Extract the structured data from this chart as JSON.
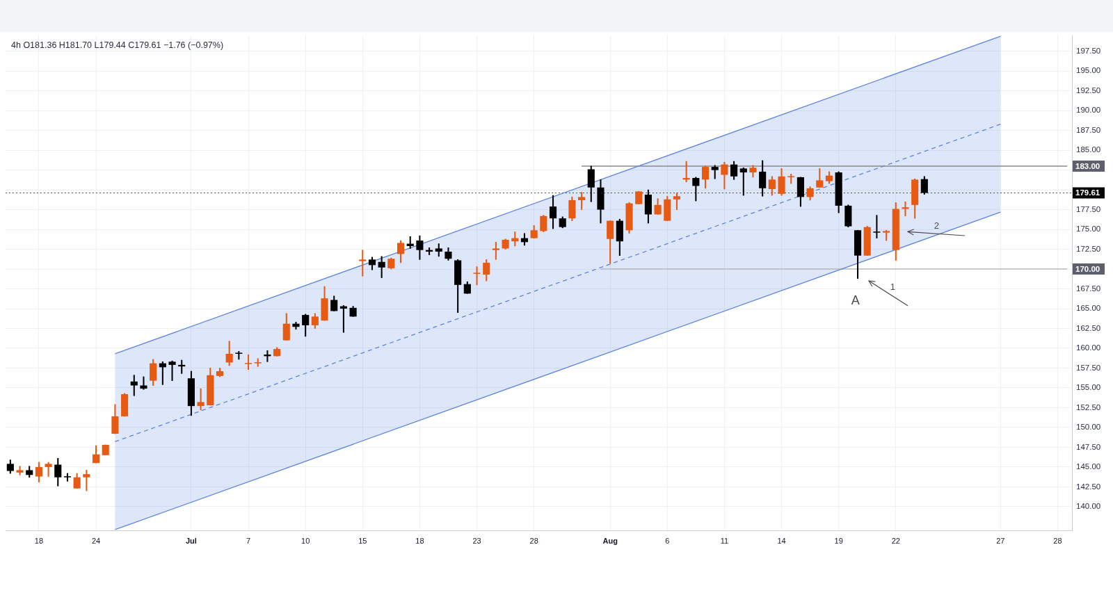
{
  "chart_data": {
    "type": "candlestick",
    "title": "4h O181.36 H181.70 L179.44 C179.61 −1.76 (−0.97%)",
    "categories": [
      null,
      null,
      null,
      "18",
      null,
      null,
      null,
      null,
      null,
      "24",
      null,
      null,
      null,
      null,
      null,
      null,
      null,
      null,
      null,
      "Jul",
      null,
      null,
      null,
      null,
      null,
      "7",
      null,
      null,
      null,
      null,
      null,
      "10",
      null,
      null,
      null,
      null,
      null,
      "15",
      null,
      null,
      null,
      null,
      null,
      "18",
      null,
      null,
      null,
      null,
      null,
      "23",
      null,
      null,
      null,
      null,
      null,
      "28",
      null,
      null,
      null,
      null,
      null,
      null,
      null,
      "Aug",
      null,
      null,
      null,
      null,
      null,
      "6",
      null,
      null,
      null,
      null,
      null,
      "11",
      null,
      null,
      null,
      null,
      null,
      "14",
      null,
      null,
      null,
      null,
      null,
      "19",
      null,
      null,
      null,
      null,
      null,
      "22",
      null,
      null,
      null,
      null,
      null,
      null,
      null,
      null,
      null,
      null,
      "27",
      null,
      null,
      null,
      null,
      null,
      "28",
      null
    ],
    "series": [
      {
        "ohlc": [
          [
            145.4,
            145.9,
            144.2,
            144.5
          ],
          [
            144.3,
            145.1,
            144.0,
            144.6
          ],
          [
            144.6,
            145.1,
            143.7,
            144.0
          ],
          [
            143.8,
            145.6,
            143.1,
            145.0
          ],
          [
            145.0,
            145.6,
            143.8,
            145.4
          ],
          [
            145.3,
            146.1,
            142.6,
            143.7
          ],
          [
            143.8,
            144.2,
            143.2,
            143.7
          ],
          [
            142.3,
            144.2,
            142.3,
            143.7
          ],
          [
            143.7,
            144.6,
            142.0,
            144.1
          ],
          [
            145.5,
            147.7,
            145.5,
            146.6
          ],
          [
            146.5,
            147.8,
            146.5,
            147.8
          ],
          [
            149.2,
            152.9,
            149.2,
            151.4
          ],
          [
            151.4,
            154.3,
            151.4,
            154.2
          ],
          [
            155.8,
            156.6,
            154.0,
            155.3
          ],
          [
            155.3,
            156.4,
            154.8,
            154.9
          ],
          [
            155.9,
            158.6,
            155.3,
            158.1
          ],
          [
            158.1,
            158.3,
            155.4,
            157.6
          ],
          [
            158.3,
            158.4,
            155.9,
            157.9
          ],
          [
            157.9,
            158.5,
            156.8,
            157.7
          ],
          [
            156.2,
            157.1,
            151.5,
            152.7
          ],
          [
            152.7,
            154.9,
            152.2,
            153.2
          ],
          [
            152.8,
            157.5,
            152.8,
            156.6
          ],
          [
            156.5,
            157.5,
            156.4,
            157.1
          ],
          [
            158.2,
            160.9,
            157.8,
            159.3
          ],
          [
            159.4,
            159.6,
            158.6,
            159.3
          ],
          [
            158.0,
            159.2,
            157.3,
            158.1
          ],
          [
            158.1,
            158.7,
            157.7,
            158.2
          ],
          [
            159.2,
            159.7,
            158.3,
            159.0
          ],
          [
            159.0,
            160.1,
            159.0,
            159.9
          ],
          [
            161.0,
            164.4,
            161.0,
            163.1
          ],
          [
            163.1,
            163.3,
            162.4,
            162.7
          ],
          [
            164.2,
            164.3,
            161.5,
            162.9
          ],
          [
            162.9,
            164.4,
            162.5,
            164.0
          ],
          [
            163.5,
            167.8,
            163.5,
            166.3
          ],
          [
            166.1,
            166.6,
            164.7,
            164.7
          ],
          [
            165.3,
            165.4,
            162.0,
            165.0
          ],
          [
            165.1,
            165.3,
            164.0,
            164.0
          ],
          [
            171.0,
            172.4,
            169.1,
            171.2
          ],
          [
            171.2,
            171.5,
            169.9,
            170.5
          ],
          [
            170.9,
            171.6,
            168.9,
            170.2
          ],
          [
            170.1,
            171.4,
            170.0,
            171.3
          ],
          [
            171.9,
            173.6,
            170.8,
            173.3
          ],
          [
            173.2,
            174.1,
            172.6,
            172.9
          ],
          [
            173.6,
            174.2,
            171.2,
            172.4
          ],
          [
            172.4,
            172.7,
            171.8,
            172.2
          ],
          [
            172.6,
            173.2,
            171.6,
            172.2
          ],
          [
            172.2,
            172.7,
            171.1,
            171.3
          ],
          [
            171.1,
            171.2,
            164.5,
            168.0
          ],
          [
            168.1,
            168.4,
            166.9,
            166.9
          ],
          [
            169.4,
            170.3,
            168.0,
            169.5
          ],
          [
            169.3,
            171.2,
            168.5,
            170.8
          ],
          [
            172.4,
            173.4,
            171.2,
            172.6
          ],
          [
            172.6,
            173.8,
            172.5,
            173.7
          ],
          [
            173.5,
            174.7,
            172.9,
            173.9
          ],
          [
            173.9,
            174.5,
            173.0,
            173.4
          ],
          [
            173.9,
            175.5,
            173.9,
            174.9
          ],
          [
            174.8,
            176.8,
            174.7,
            176.7
          ],
          [
            177.9,
            179.3,
            175.1,
            176.4
          ],
          [
            176.4,
            176.6,
            175.2,
            175.3
          ],
          [
            176.4,
            179.1,
            176.1,
            178.7
          ],
          [
            178.7,
            179.7,
            177.5,
            179.1
          ],
          [
            182.6,
            183.0,
            178.5,
            180.3
          ],
          [
            180.3,
            181.3,
            175.8,
            177.5
          ],
          [
            173.8,
            176.1,
            170.7,
            176.1
          ],
          [
            176.1,
            176.3,
            171.7,
            173.5
          ],
          [
            174.9,
            178.4,
            174.5,
            178.3
          ],
          [
            178.2,
            179.8,
            178.2,
            179.8
          ],
          [
            179.4,
            180.0,
            175.8,
            176.9
          ],
          [
            176.9,
            178.9,
            176.9,
            178.1
          ],
          [
            176.1,
            179.2,
            176.1,
            178.8
          ],
          [
            178.8,
            179.6,
            177.5,
            179.2
          ],
          [
            181.3,
            183.6,
            181.0,
            181.5
          ],
          [
            181.5,
            181.6,
            178.6,
            180.5
          ],
          [
            181.3,
            183.0,
            180.2,
            182.9
          ],
          [
            182.9,
            183.1,
            181.4,
            182.5
          ],
          [
            181.9,
            183.5,
            180.1,
            183.2
          ],
          [
            183.2,
            183.6,
            181.3,
            181.7
          ],
          [
            182.7,
            182.8,
            179.3,
            182.2
          ],
          [
            182.2,
            183.1,
            181.6,
            182.8
          ],
          [
            182.3,
            183.7,
            179.2,
            180.2
          ],
          [
            180.1,
            181.7,
            179.3,
            181.3
          ],
          [
            179.5,
            182.7,
            179.3,
            181.7
          ],
          [
            181.6,
            182.0,
            180.8,
            181.7
          ],
          [
            181.6,
            181.6,
            177.9,
            179.1
          ],
          [
            179.1,
            180.4,
            178.7,
            180.2
          ],
          [
            180.3,
            182.7,
            180.3,
            181.2
          ],
          [
            181.1,
            182.3,
            180.8,
            181.8
          ],
          [
            182.2,
            182.3,
            177.1,
            178.0
          ],
          [
            178.0,
            178.1,
            175.3,
            175.4
          ],
          [
            174.9,
            174.9,
            168.8,
            171.7
          ],
          [
            171.7,
            175.4,
            171.7,
            175.3
          ],
          [
            174.7,
            176.8,
            173.9,
            174.6
          ],
          [
            174.6,
            174.9,
            173.6,
            174.8
          ],
          [
            172.4,
            178.4,
            171.1,
            177.6
          ],
          [
            177.6,
            178.5,
            176.7,
            177.8
          ],
          [
            178.1,
            181.4,
            176.4,
            181.3
          ],
          [
            181.36,
            181.7,
            179.44,
            179.61
          ],
          null,
          null,
          null,
          null,
          null,
          null,
          null,
          null,
          null,
          null,
          null,
          null,
          null,
          null,
          null
        ],
        "colors": [
          "#000000",
          "#e65a14",
          "#000000",
          "#e65a14",
          "#e65a14",
          "#000000",
          "#000000",
          "#e65a14",
          "#e65a14",
          "#e65a14",
          "#e65a14",
          "#e65a14",
          "#e65a14",
          "#000000",
          "#000000",
          "#e65a14",
          "#000000",
          "#000000",
          "#000000",
          "#000000",
          "#e65a14",
          "#e65a14",
          "#e65a14",
          "#e65a14",
          "#000000",
          "#e65a14",
          "#e65a14",
          "#000000",
          "#e65a14",
          "#e65a14",
          "#000000",
          "#000000",
          "#e65a14",
          "#e65a14",
          "#000000",
          "#000000",
          "#000000",
          "#e65a14",
          "#000000",
          "#000000",
          "#e65a14",
          "#e65a14",
          "#000000",
          "#000000",
          "#000000",
          "#000000",
          "#000000",
          "#000000",
          "#000000",
          "#e65a14",
          "#e65a14",
          "#e65a14",
          "#e65a14",
          "#e65a14",
          "#000000",
          "#e65a14",
          "#e65a14",
          "#000000",
          "#000000",
          "#e65a14",
          "#e65a14",
          "#000000",
          "#000000",
          "#e65a14",
          "#000000",
          "#e65a14",
          "#e65a14",
          "#000000",
          "#e65a14",
          "#e65a14",
          "#e65a14",
          "#e65a14",
          "#000000",
          "#e65a14",
          "#000000",
          "#e65a14",
          "#000000",
          "#000000",
          "#e65a14",
          "#000000",
          "#e65a14",
          "#e65a14",
          "#e65a14",
          "#000000",
          "#e65a14",
          "#e65a14",
          "#e65a14",
          "#000000",
          "#000000",
          "#000000",
          "#e65a14",
          "#000000",
          "#e65a14",
          "#e65a14",
          "#e65a14",
          "#e65a14",
          "#000000",
          null,
          null,
          null,
          null,
          null,
          null,
          null,
          null,
          null,
          null,
          null,
          null,
          null,
          null,
          null
        ]
      },
      {
        "type": "line",
        "color": "#5b84e0",
        "line_style": "dashed",
        "values": [
          null,
          null,
          null,
          null,
          null,
          null,
          null,
          null,
          null,
          null,
          null,
          148.2,
          null,
          null,
          null,
          null,
          null,
          null,
          null,
          null,
          null,
          null,
          null,
          null,
          null,
          null,
          null,
          null,
          null,
          null,
          null,
          null,
          null,
          null,
          null,
          null,
          null,
          null,
          null,
          null,
          null,
          null,
          null,
          null,
          null,
          null,
          null,
          null,
          null,
          null,
          null,
          null,
          null,
          null,
          null,
          null,
          null,
          null,
          null,
          null,
          null,
          null,
          null,
          null,
          null,
          null,
          null,
          null,
          null,
          null,
          null,
          null,
          null,
          null,
          null,
          null,
          null,
          null,
          null,
          null,
          null,
          null,
          null,
          null,
          null,
          null,
          null,
          null,
          null,
          null,
          null,
          null,
          null,
          null,
          null,
          null,
          null,
          null,
          null,
          null,
          null,
          null,
          null,
          null,
          188.3,
          null,
          null,
          null,
          null,
          null,
          null,
          null
        ],
        "lower": [
          null,
          null,
          null,
          null,
          null,
          null,
          null,
          null,
          null,
          null,
          null,
          137.1,
          null,
          null,
          null,
          null,
          null,
          null,
          null,
          null,
          null,
          null,
          null,
          null,
          null,
          null,
          null,
          null,
          null,
          null,
          null,
          null,
          null,
          null,
          null,
          null,
          null,
          null,
          null,
          null,
          null,
          null,
          null,
          null,
          null,
          null,
          null,
          null,
          null,
          null,
          null,
          null,
          null,
          null,
          null,
          null,
          null,
          null,
          null,
          null,
          null,
          null,
          null,
          null,
          null,
          null,
          null,
          null,
          null,
          null,
          null,
          null,
          null,
          null,
          null,
          null,
          null,
          null,
          null,
          null,
          null,
          null,
          null,
          null,
          null,
          null,
          null,
          null,
          null,
          null,
          null,
          null,
          null,
          null,
          null,
          null,
          null,
          null,
          null,
          null,
          null,
          null,
          null,
          null,
          177.2,
          null,
          null,
          null,
          null,
          null,
          null,
          null
        ],
        "upper": [
          null,
          null,
          null,
          null,
          null,
          null,
          null,
          null,
          null,
          null,
          null,
          159.3,
          null,
          null,
          null,
          null,
          null,
          null,
          null,
          null,
          null,
          null,
          null,
          null,
          null,
          null,
          null,
          null,
          null,
          null,
          null,
          null,
          null,
          null,
          null,
          null,
          null,
          null,
          null,
          null,
          null,
          null,
          null,
          null,
          null,
          null,
          null,
          null,
          null,
          null,
          null,
          null,
          null,
          null,
          null,
          null,
          null,
          null,
          null,
          null,
          null,
          null,
          null,
          null,
          null,
          null,
          null,
          null,
          null,
          null,
          null,
          null,
          null,
          null,
          null,
          null,
          null,
          null,
          null,
          null,
          null,
          null,
          null,
          null,
          null,
          null,
          null,
          null,
          null,
          null,
          null,
          null,
          null,
          null,
          null,
          null,
          null,
          null,
          null,
          null,
          null,
          null,
          null,
          null,
          199.4,
          null,
          null,
          null,
          null,
          null,
          null,
          null
        ]
      },
      {
        "type": "line",
        "color": "#5b84e0",
        "values": [
          null,
          null,
          null,
          null,
          null,
          null,
          null,
          null,
          null,
          null,
          null,
          159.3,
          null,
          null,
          null,
          null,
          null,
          null,
          null,
          null,
          null,
          null,
          null,
          null,
          null,
          null,
          null,
          null,
          null,
          null,
          null,
          null,
          null,
          null,
          null,
          null,
          null,
          null,
          null,
          null,
          null,
          null,
          null,
          null,
          null,
          null,
          null,
          null,
          null,
          null,
          null,
          null,
          null,
          null,
          null,
          null,
          null,
          null,
          null,
          null,
          null,
          null,
          null,
          null,
          null,
          null,
          null,
          null,
          null,
          null,
          null,
          null,
          null,
          null,
          null,
          null,
          null,
          null,
          null,
          null,
          null,
          null,
          null,
          null,
          null,
          null,
          null,
          null,
          null,
          null,
          null,
          null,
          null,
          null,
          null,
          null,
          null,
          null,
          null,
          null,
          null,
          null,
          null,
          null,
          199.4,
          null,
          null,
          null,
          null,
          null,
          null,
          null
        ]
      },
      {
        "type": "line",
        "color": "#5b84e0",
        "values": [
          null,
          null,
          null,
          null,
          null,
          null,
          null,
          null,
          null,
          null,
          null,
          137.1,
          null,
          null,
          null,
          null,
          null,
          null,
          null,
          null,
          null,
          null,
          null,
          null,
          null,
          null,
          null,
          null,
          null,
          null,
          null,
          null,
          null,
          null,
          null,
          null,
          null,
          null,
          null,
          null,
          null,
          null,
          null,
          null,
          null,
          null,
          null,
          null,
          null,
          null,
          null,
          null,
          null,
          null,
          null,
          null,
          null,
          null,
          null,
          null,
          null,
          null,
          null,
          null,
          null,
          null,
          null,
          null,
          null,
          null,
          null,
          null,
          null,
          null,
          null,
          null,
          null,
          null,
          null,
          null,
          null,
          null,
          null,
          null,
          null,
          null,
          null,
          null,
          null,
          null,
          null,
          null,
          null,
          null,
          null,
          null,
          null,
          null,
          null,
          null,
          null,
          null,
          null,
          null,
          177.2,
          null,
          null,
          null,
          null,
          null,
          null,
          null
        ]
      },
      {
        "type": "line",
        "color": "#8a8a8a",
        "name": "183.00",
        "values": [
          null,
          null,
          null,
          null,
          null,
          null,
          null,
          null,
          null,
          null,
          null,
          null,
          null,
          null,
          null,
          null,
          null,
          null,
          null,
          null,
          null,
          null,
          null,
          null,
          null,
          null,
          null,
          null,
          null,
          null,
          null,
          null,
          null,
          null,
          null,
          null,
          null,
          null,
          null,
          null,
          null,
          null,
          null,
          null,
          null,
          null,
          null,
          null,
          null,
          null,
          null,
          null,
          null,
          null,
          null,
          null,
          null,
          null,
          null,
          null,
          183,
          null,
          null,
          null,
          null,
          null,
          null,
          null,
          null,
          null,
          null,
          null,
          null,
          null,
          null,
          null,
          null,
          null,
          null,
          null,
          null,
          null,
          null,
          null,
          null,
          null,
          null,
          null,
          null,
          null,
          null,
          null,
          null,
          null,
          null,
          null,
          null,
          null,
          null,
          null,
          null,
          null,
          null,
          null,
          null,
          null,
          null,
          null,
          null,
          null,
          null,
          183
        ]
      },
      {
        "type": "line",
        "color": "#b8b8b8",
        "name": "170.00",
        "values": [
          null,
          null,
          null,
          null,
          null,
          null,
          null,
          null,
          null,
          null,
          null,
          null,
          null,
          null,
          null,
          null,
          null,
          null,
          null,
          null,
          null,
          null,
          null,
          null,
          null,
          null,
          null,
          null,
          null,
          null,
          null,
          null,
          null,
          null,
          null,
          null,
          null,
          null,
          null,
          null,
          null,
          null,
          null,
          null,
          null,
          null,
          null,
          null,
          null,
          null,
          null,
          null,
          null,
          null,
          null,
          null,
          null,
          null,
          null,
          null,
          null,
          null,
          170,
          null,
          null,
          null,
          null,
          null,
          null,
          null,
          null,
          null,
          null,
          null,
          null,
          null,
          null,
          null,
          null,
          null,
          null,
          null,
          null,
          null,
          null,
          null,
          null,
          null,
          null,
          null,
          null,
          null,
          null,
          null,
          null,
          null,
          null,
          null,
          null,
          null,
          null,
          null,
          null,
          null,
          null,
          null,
          null,
          null,
          null,
          null,
          null,
          170
        ]
      }
    ],
    "ylim": [
      137,
      199.5
    ],
    "yticks": [
      {
        "value": 140,
        "label": "140.00"
      },
      {
        "value": 142.5,
        "label": "142.50"
      },
      {
        "value": 145,
        "label": "145.00"
      },
      {
        "value": 147.5,
        "label": "147.50"
      },
      {
        "value": 150,
        "label": "150.00"
      },
      {
        "value": 152.5,
        "label": "152.50"
      },
      {
        "value": 155,
        "label": "155.00"
      },
      {
        "value": 157.5,
        "label": "157.50"
      },
      {
        "value": 160,
        "label": "160.00"
      },
      {
        "value": 162.5,
        "label": "162.50"
      },
      {
        "value": 165,
        "label": "165.00"
      },
      {
        "value": 167.5,
        "label": "167.50"
      },
      {
        "value": 170,
        "label": null
      },
      {
        "value": 172.5,
        "label": "172.50"
      },
      {
        "value": 175,
        "label": "175.00"
      },
      {
        "value": 177.5,
        "label": "177.50"
      },
      {
        "value": 180,
        "label": null
      },
      {
        "value": 182.5,
        "label": null
      },
      {
        "value": 185,
        "label": "185.00"
      },
      {
        "value": 187.5,
        "label": "187.50"
      },
      {
        "value": 190,
        "label": "190.00"
      },
      {
        "value": 192.5,
        "label": "192.50"
      },
      {
        "value": 195,
        "label": "195.00"
      },
      {
        "value": 197.5,
        "label": "197.50"
      }
    ],
    "grid": true,
    "ref_lines": [
      {
        "axis": "y",
        "value": 179.61,
        "label": "179.61",
        "color": "#4d4d4d",
        "line_style": "dotted"
      }
    ],
    "annotations": [
      "A",
      "1",
      "2"
    ]
  }
}
